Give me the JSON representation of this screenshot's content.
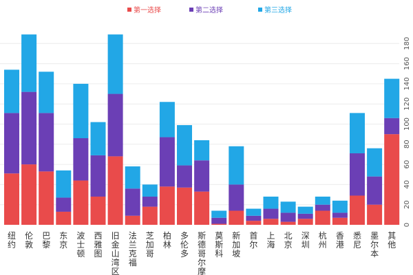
{
  "chart_data": {
    "type": "bar",
    "stacked": true,
    "title": "",
    "xlabel": "",
    "ylabel": "",
    "ylim": [
      0,
      180
    ],
    "yticks": [
      0,
      20,
      40,
      60,
      80,
      100,
      120,
      140,
      160,
      180
    ],
    "y_axis_position": "right",
    "grid": true,
    "legend_position": "top-center",
    "categories": [
      "纽约",
      "伦敦",
      "巴黎",
      "东京",
      "波士顿",
      "西雅图",
      "旧金山湾区",
      "法兰克福",
      "芝加哥",
      "柏林",
      "多伦多",
      "斯德哥尔摩",
      "莫斯科",
      "新加坡",
      "首尔",
      "上海",
      "北京",
      "深圳",
      "杭州",
      "香港",
      "悉尼",
      "墨尔本",
      "其他"
    ],
    "series": [
      {
        "name": "第一选择",
        "color": "#e94b4b",
        "values": [
          51,
          60,
          53,
          13,
          44,
          28,
          68,
          9,
          18,
          38,
          37,
          33,
          1,
          14,
          4,
          6,
          3,
          6,
          14,
          7,
          29,
          20,
          90
        ]
      },
      {
        "name": "第二选择",
        "color": "#6b3fb5",
        "values": [
          60,
          72,
          58,
          14,
          42,
          41,
          62,
          27,
          10,
          49,
          22,
          31,
          6,
          26,
          5,
          10,
          9,
          5,
          6,
          5,
          42,
          28,
          16
        ]
      },
      {
        "name": "第三选择",
        "color": "#22a7e6",
        "values": [
          43,
          57,
          41,
          27,
          54,
          33,
          59,
          22,
          12,
          35,
          40,
          20,
          7,
          38,
          7,
          12,
          11,
          7,
          8,
          12,
          40,
          28,
          39
        ]
      }
    ]
  }
}
